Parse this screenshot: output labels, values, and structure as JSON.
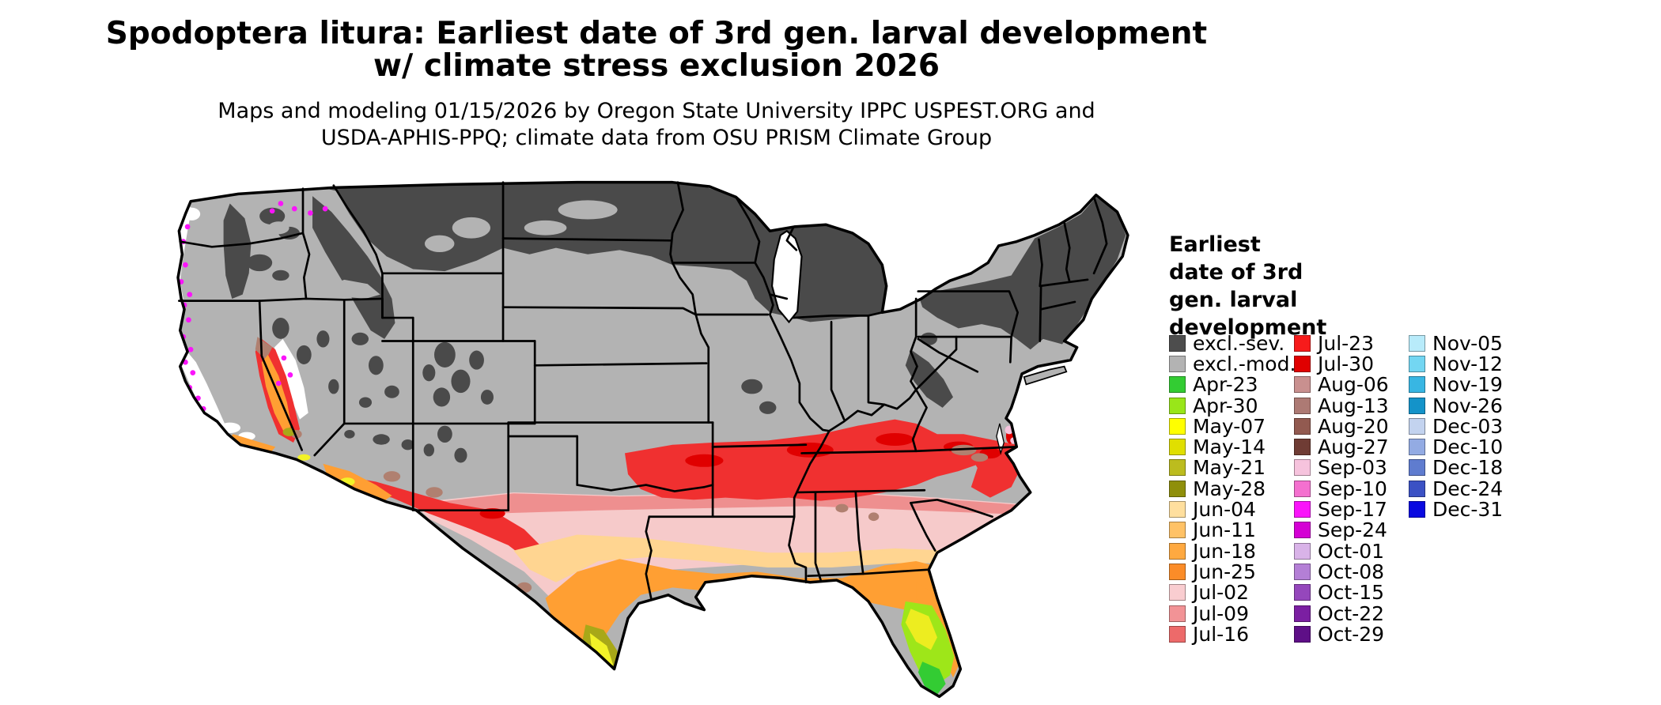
{
  "title": {
    "line1": "Spodoptera litura: Earliest date of 3rd gen. larval development",
    "line2": "w/ climate stress exclusion 2026"
  },
  "subtitle": {
    "line1": "Maps and modeling 01/15/2026 by Oregon State University IPPC USPEST.ORG and",
    "line2": "USDA-APHIS-PPQ; climate data from OSU PRISM Climate Group"
  },
  "map": {
    "area": "Contiguous United States choropleth",
    "border_color": "#000000",
    "water_color": "#ffffff",
    "no_data_color": "#ffffff"
  },
  "legend": {
    "title": "Earliest\ndate of 3rd\ngen. larval\ndevelopment",
    "columns": [
      {
        "entries": [
          {
            "label": "excl.-sev.",
            "color": "#4d4d4d"
          },
          {
            "label": "excl.-mod.",
            "color": "#b3b3b3"
          },
          {
            "label": "Apr-23",
            "color": "#33cc33"
          },
          {
            "label": "Apr-30",
            "color": "#99e619"
          },
          {
            "label": "May-07",
            "color": "#ffff00"
          },
          {
            "label": "May-14",
            "color": "#e0df00"
          },
          {
            "label": "May-21",
            "color": "#bcbc1e"
          },
          {
            "label": "May-28",
            "color": "#8f8f0a"
          },
          {
            "label": "Jun-04",
            "color": "#ffdf9e"
          },
          {
            "label": "Jun-11",
            "color": "#ffc266"
          },
          {
            "label": "Jun-18",
            "color": "#ffa940"
          },
          {
            "label": "Jun-25",
            "color": "#fb8c28"
          },
          {
            "label": "Jul-02",
            "color": "#f9cdd0"
          },
          {
            "label": "Jul-09",
            "color": "#f29396"
          },
          {
            "label": "Jul-16",
            "color": "#ed6a6a"
          }
        ]
      },
      {
        "entries": [
          {
            "label": "Jul-23",
            "color": "#f71b1b"
          },
          {
            "label": "Jul-30",
            "color": "#e00000"
          },
          {
            "label": "Aug-06",
            "color": "#c9908f"
          },
          {
            "label": "Aug-13",
            "color": "#ad7a74"
          },
          {
            "label": "Aug-20",
            "color": "#925a50"
          },
          {
            "label": "Aug-27",
            "color": "#6f3c34"
          },
          {
            "label": "Sep-03",
            "color": "#f6c3dd"
          },
          {
            "label": "Sep-10",
            "color": "#f470cf"
          },
          {
            "label": "Sep-17",
            "color": "#fa14fa"
          },
          {
            "label": "Sep-24",
            "color": "#d400d4"
          },
          {
            "label": "Oct-01",
            "color": "#d9b3e8"
          },
          {
            "label": "Oct-08",
            "color": "#b47fd6"
          },
          {
            "label": "Oct-15",
            "color": "#9547bc"
          },
          {
            "label": "Oct-22",
            "color": "#7b1fa2"
          },
          {
            "label": "Oct-29",
            "color": "#5e0f87"
          }
        ]
      },
      {
        "entries": [
          {
            "label": "Nov-05",
            "color": "#b8ebfa"
          },
          {
            "label": "Nov-12",
            "color": "#73d6f2"
          },
          {
            "label": "Nov-19",
            "color": "#38b6e3"
          },
          {
            "label": "Nov-26",
            "color": "#1493c9"
          },
          {
            "label": "Dec-03",
            "color": "#c3d3ef"
          },
          {
            "label": "Dec-10",
            "color": "#93abe3"
          },
          {
            "label": "Dec-18",
            "color": "#5f7ccf"
          },
          {
            "label": "Dec-24",
            "color": "#3b51c4"
          },
          {
            "label": "Dec-31",
            "color": "#0a0ae0"
          }
        ]
      }
    ]
  }
}
